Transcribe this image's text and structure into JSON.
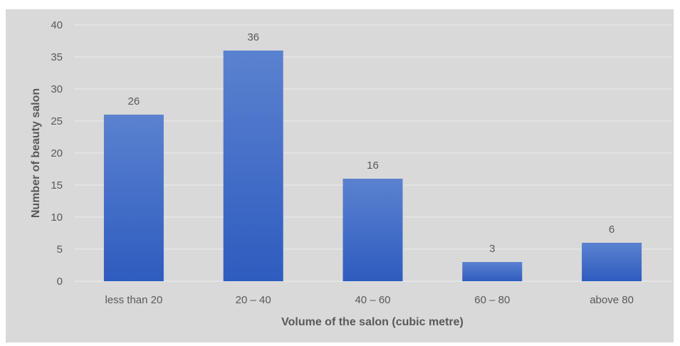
{
  "chart_data": {
    "type": "bar",
    "title": "",
    "xlabel": "Volume of the salon (cubic metre)",
    "ylabel": "Number of beauty salon",
    "categories": [
      "less than 20",
      "20 – 40",
      "40 – 60",
      "60 – 80",
      "above 80"
    ],
    "values": [
      26,
      36,
      16,
      3,
      6
    ],
    "ylim": [
      0,
      40
    ],
    "yticks": [
      0,
      5,
      10,
      15,
      20,
      25,
      30,
      35,
      40
    ],
    "grid": true,
    "legend": "none",
    "data_labels": true
  },
  "colors": {
    "background": "#d9d9d9",
    "bar_top": "#5b82d0",
    "bar_bottom": "#2e5cbf",
    "gridline": "#ededed",
    "text": "#595959"
  }
}
